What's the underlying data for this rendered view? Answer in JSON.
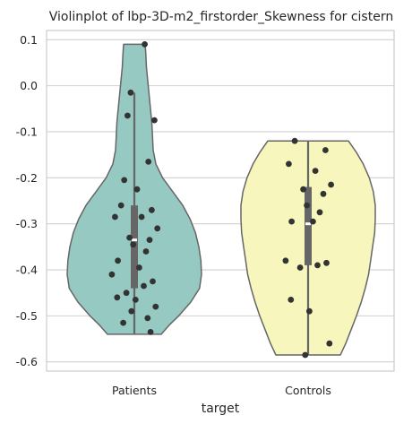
{
  "chart_data": {
    "type": "violin",
    "title": "Violinplot of lbp-3D-m2_firstorder_Skewness for cistern",
    "xlabel": "target",
    "ylabel": "",
    "ylim": [
      -0.62,
      0.12
    ],
    "y_ticks": [
      "0.1",
      "0.0",
      "-0.1",
      "-0.2",
      "-0.3",
      "-0.4",
      "-0.5",
      "-0.6"
    ],
    "y_tick_values": [
      0.1,
      0.0,
      -0.1,
      -0.2,
      -0.3,
      -0.4,
      -0.5,
      -0.6
    ],
    "grid": true,
    "legend": "none",
    "categories": [
      "Patients",
      "Controls"
    ],
    "colors": {
      "Patients": "#96c9c1",
      "Controls": "#f7f6bc",
      "outline": "#666666",
      "points": "#333333",
      "grid": "#d0d0d0"
    },
    "series": [
      {
        "category": "Patients",
        "min": -0.54,
        "q1": -0.44,
        "median": -0.335,
        "q3": -0.26,
        "whisker_low": -0.54,
        "whisker_high": -0.015,
        "max": 0.09,
        "density": [
          [
            -0.54,
            0.4
          ],
          [
            -0.52,
            0.52
          ],
          [
            -0.5,
            0.66
          ],
          [
            -0.47,
            0.84
          ],
          [
            -0.44,
            0.97
          ],
          [
            -0.41,
            1.0
          ],
          [
            -0.38,
            0.99
          ],
          [
            -0.35,
            0.96
          ],
          [
            -0.32,
            0.91
          ],
          [
            -0.29,
            0.83
          ],
          [
            -0.26,
            0.72
          ],
          [
            -0.23,
            0.57
          ],
          [
            -0.2,
            0.42
          ],
          [
            -0.17,
            0.32
          ],
          [
            -0.14,
            0.28
          ],
          [
            -0.11,
            0.27
          ],
          [
            -0.08,
            0.26
          ],
          [
            -0.05,
            0.24
          ],
          [
            -0.02,
            0.22
          ],
          [
            0.01,
            0.2
          ],
          [
            0.04,
            0.18
          ],
          [
            0.07,
            0.17
          ],
          [
            0.09,
            0.16
          ]
        ],
        "points": [
          0.09,
          -0.015,
          -0.065,
          -0.075,
          -0.165,
          -0.205,
          -0.225,
          -0.26,
          -0.27,
          -0.285,
          -0.285,
          -0.31,
          -0.33,
          -0.335,
          -0.345,
          -0.36,
          -0.38,
          -0.395,
          -0.41,
          -0.425,
          -0.435,
          -0.45,
          -0.46,
          -0.465,
          -0.48,
          -0.49,
          -0.505,
          -0.515,
          -0.535
        ]
      },
      {
        "category": "Controls",
        "min": -0.585,
        "q1": -0.39,
        "median": -0.3,
        "q3": -0.22,
        "whisker_low": -0.585,
        "whisker_high": -0.12,
        "max": -0.12,
        "density": [
          [
            -0.585,
            0.48
          ],
          [
            -0.56,
            0.56
          ],
          [
            -0.53,
            0.64
          ],
          [
            -0.5,
            0.72
          ],
          [
            -0.47,
            0.79
          ],
          [
            -0.44,
            0.85
          ],
          [
            -0.41,
            0.9
          ],
          [
            -0.38,
            0.93
          ],
          [
            -0.35,
            0.96
          ],
          [
            -0.32,
            0.99
          ],
          [
            -0.29,
            1.0
          ],
          [
            -0.26,
            1.0
          ],
          [
            -0.23,
            0.97
          ],
          [
            -0.2,
            0.91
          ],
          [
            -0.17,
            0.82
          ],
          [
            -0.145,
            0.72
          ],
          [
            -0.12,
            0.6
          ]
        ],
        "points": [
          -0.12,
          -0.14,
          -0.17,
          -0.185,
          -0.215,
          -0.225,
          -0.235,
          -0.26,
          -0.275,
          -0.295,
          -0.295,
          -0.38,
          -0.385,
          -0.39,
          -0.395,
          -0.465,
          -0.49,
          -0.56,
          -0.585
        ]
      }
    ]
  }
}
